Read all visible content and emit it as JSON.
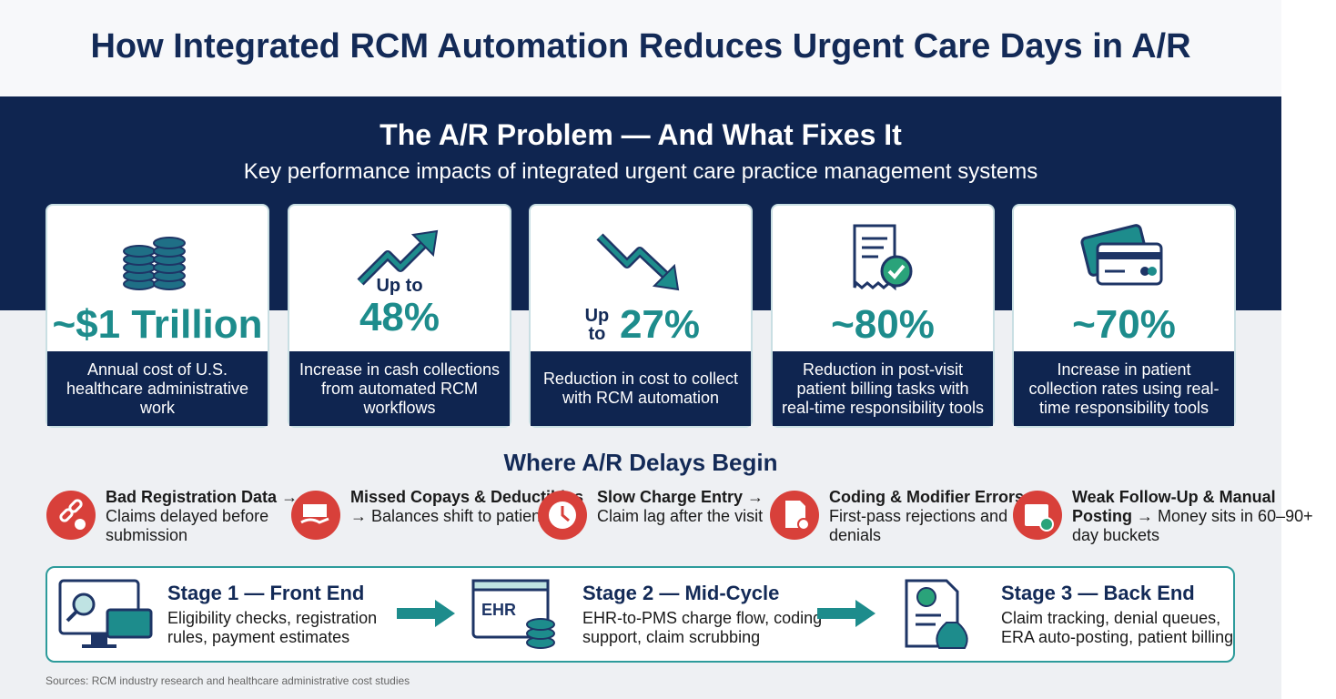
{
  "header": {
    "title": "How Integrated RCM Automation Reduces Urgent Care Days in A/R"
  },
  "section": {
    "title": "The A/R Problem — And What Fixes It",
    "subtitle": "Key performance impacts of integrated urgent care practice management systems"
  },
  "cards": [
    {
      "stat": "~$1 Trillion",
      "description": "Annual cost of U.S. healthcare administrative work"
    },
    {
      "prefix": "Up to",
      "stat": "48%",
      "description": "Increase in cash collections from automated RCM workflows"
    },
    {
      "prefix": "Up to",
      "stat": "27%",
      "description": "Reduction in cost to collect with RCM automation"
    },
    {
      "stat": "~80%",
      "description": "Reduction in post-visit patient billing tasks with real-time responsibility tools"
    },
    {
      "stat": "~70%",
      "description": "Increase in patient collection rates using real-time responsibility tools"
    }
  ],
  "delays": {
    "title": "Where A/R Delays Begin",
    "items": [
      {
        "title": "Bad Registration Data",
        "text": "→ Claims delayed before submission"
      },
      {
        "title": "Missed Copays & Deductibles",
        "text": "→ Balances shift to patient A/R"
      },
      {
        "title": "Slow Charge Entry",
        "text": "→ Claim lag after the visit"
      },
      {
        "title": "Coding & Modifier Errors",
        "text": "→ First-pass rejections and denials"
      },
      {
        "title": "Weak Follow-Up & Manual Posting",
        "text": "→ Money sits in 60–90+ day buckets"
      }
    ]
  },
  "stages": [
    {
      "title": "Stage 1 — Front End",
      "text": "Eligibility checks, registration rules, payment estimates"
    },
    {
      "title": "Stage 2 — Mid-Cycle",
      "icon_label": "EHR",
      "text": "EHR-to-PMS charge flow, coding support, claim scrubbing"
    },
    {
      "title": "Stage 3 — Back End",
      "text": "Claim tracking, denial queues, ERA auto-posting, patient billing"
    }
  ],
  "footer": {
    "sources": "Sources: RCM industry research and healthcare administrative cost studies"
  }
}
